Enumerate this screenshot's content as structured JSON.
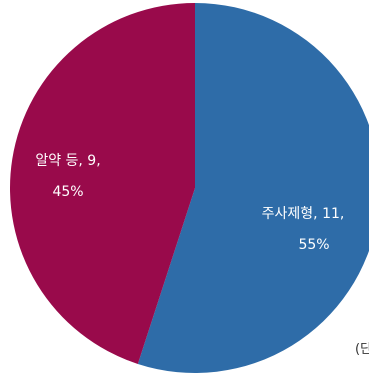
{
  "chart_data": {
    "type": "pie",
    "title": "",
    "slices": [
      {
        "label": "주사제형",
        "value": 11,
        "percent": "55%",
        "color": "#2e6ca8",
        "label_line1": "주사제형,  11,",
        "label_line2": "55%"
      },
      {
        "label": "알약 등",
        "value": 9,
        "percent": "45%",
        "color": "#990a4b",
        "label_line1": "알약  등, 9,",
        "label_line2": "45%"
      }
    ]
  },
  "unit_note": "(단"
}
